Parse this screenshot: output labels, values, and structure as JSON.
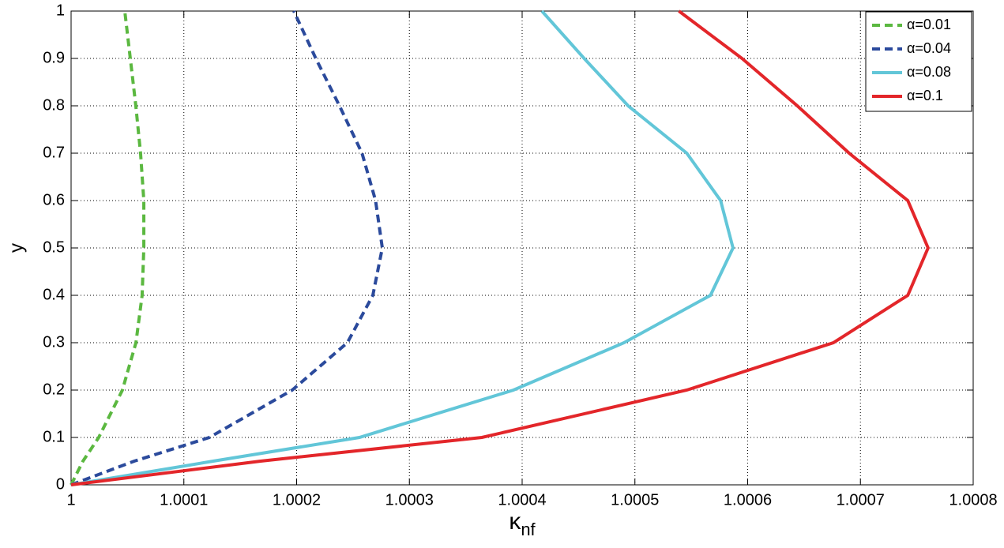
{
  "chart_data": {
    "type": "line",
    "xlabel": "κ",
    "xlabel_sub": "nf",
    "ylabel": "y",
    "xlim": [
      1,
      1.0008
    ],
    "xticks": [
      1,
      1.0001,
      1.0002,
      1.0003,
      1.0004,
      1.0005,
      1.0006,
      1.0007,
      1.0008
    ],
    "ylim": [
      0,
      1
    ],
    "yticks": [
      0,
      0.1,
      0.2,
      0.3,
      0.4,
      0.5,
      0.6,
      0.7,
      0.8,
      0.9,
      1
    ],
    "grid": true,
    "legend": "upper right",
    "series": [
      {
        "name": "α=0.01",
        "color": "#5bb840",
        "dash": true,
        "x": [
          1,
          1.0000105,
          1.0000245,
          1.0000455,
          1.0000575,
          1.000063,
          1.0000645,
          1.0000645,
          1.0000616,
          1.0000574,
          1.0000525,
          1.0000476
        ],
        "y": [
          0,
          0.05,
          0.1,
          0.2,
          0.3,
          0.4,
          0.5,
          0.6,
          0.7,
          0.8,
          0.9,
          1
        ]
      },
      {
        "name": "α=0.04",
        "color": "#2b4a9c",
        "dash": true,
        "x": [
          1,
          1.000056,
          1.0001226,
          1.0001961,
          1.000245,
          1.0002676,
          1.000276,
          1.00027,
          1.000258,
          1.000238,
          1.000217,
          1.0001975
        ],
        "y": [
          0,
          0.05,
          0.1,
          0.2,
          0.3,
          0.4,
          0.5,
          0.6,
          0.7,
          0.8,
          0.9,
          1
        ]
      },
      {
        "name": "α=0.08",
        "color": "#62c6d8",
        "dash": false,
        "x": [
          1,
          1.000126,
          1.0002557,
          1.0003923,
          1.0004904,
          1.000567,
          1.000587,
          1.000576,
          1.000546,
          1.000494,
          1.000455,
          1.0004175
        ],
        "y": [
          0,
          0.05,
          0.1,
          0.2,
          0.3,
          0.4,
          0.5,
          0.6,
          0.7,
          0.8,
          0.9,
          1
        ]
      },
      {
        "name": "α=0.1",
        "color": "#e3262a",
        "dash": false,
        "x": [
          1,
          1.000168,
          1.0003643,
          1.000546,
          1.000676,
          1.000742,
          1.00076,
          1.000742,
          1.00069,
          1.000644,
          1.000595,
          1.000539
        ],
        "y": [
          0,
          0.05,
          0.1,
          0.2,
          0.3,
          0.4,
          0.5,
          0.6,
          0.7,
          0.8,
          0.9,
          1
        ]
      }
    ]
  }
}
